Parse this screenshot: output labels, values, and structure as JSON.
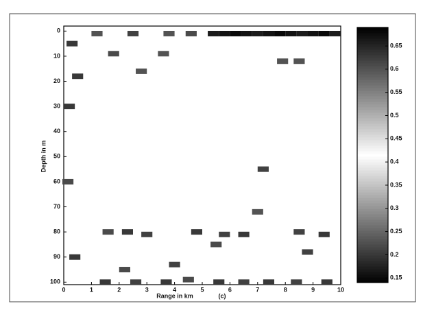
{
  "chart_data": {
    "type": "heatmap",
    "x_label": "Range in km",
    "panel_label": "(c)",
    "y_label": "Depth in m",
    "xlim": [
      0,
      10
    ],
    "xticks": [
      0,
      1,
      2,
      3,
      4,
      5,
      6,
      7,
      8,
      9,
      10
    ],
    "ylim": [
      -2,
      101
    ],
    "yticks": [
      0,
      10,
      20,
      30,
      40,
      50,
      60,
      70,
      80,
      90,
      100
    ],
    "y_inverted": true,
    "clim": [
      0.14,
      0.69
    ],
    "cticks": [
      0.15,
      0.2,
      0.25,
      0.3,
      0.35,
      0.4,
      0.45,
      0.5,
      0.55,
      0.6,
      0.65
    ],
    "x": [
      5.4,
      5.8,
      6.2,
      6.6,
      7.0,
      7.4,
      7.8,
      8.2,
      8.6,
      9.0,
      9.4,
      9.8,
      1.2,
      2.5,
      3.8,
      4.6,
      0.3,
      1.8,
      3.6,
      7.9,
      8.5,
      0.5,
      2.8,
      7.2,
      7.0,
      1.6,
      2.3,
      3.0,
      4.8,
      5.8,
      6.5,
      8.5,
      9.4,
      5.5,
      8.8,
      0.4,
      4.0,
      2.2,
      1.5,
      2.6,
      3.7,
      4.5,
      5.6,
      6.5,
      7.4,
      8.4,
      9.5,
      0.15,
      0.2
    ],
    "y": [
      1,
      1,
      1,
      1,
      1,
      1,
      1,
      1,
      1,
      1,
      1,
      1,
      1,
      1,
      1,
      1,
      5,
      9,
      9,
      12,
      12,
      18,
      16,
      55,
      72,
      80,
      80,
      81,
      80,
      81,
      81,
      80,
      81,
      85,
      88,
      90,
      93,
      95,
      100,
      100,
      100,
      99,
      100,
      100,
      100,
      100,
      100,
      60,
      30
    ],
    "values": [
      0.66,
      0.67,
      0.68,
      0.67,
      0.66,
      0.67,
      0.68,
      0.67,
      0.66,
      0.67,
      0.68,
      0.66,
      0.6,
      0.62,
      0.6,
      0.61,
      0.2,
      0.22,
      0.6,
      0.6,
      0.6,
      0.2,
      0.6,
      0.62,
      0.6,
      0.22,
      0.2,
      0.21,
      0.2,
      0.21,
      0.2,
      0.21,
      0.2,
      0.22,
      0.21,
      0.2,
      0.21,
      0.22,
      0.2,
      0.21,
      0.2,
      0.22,
      0.2,
      0.21,
      0.2,
      0.21,
      0.2,
      0.22,
      0.2
    ]
  }
}
